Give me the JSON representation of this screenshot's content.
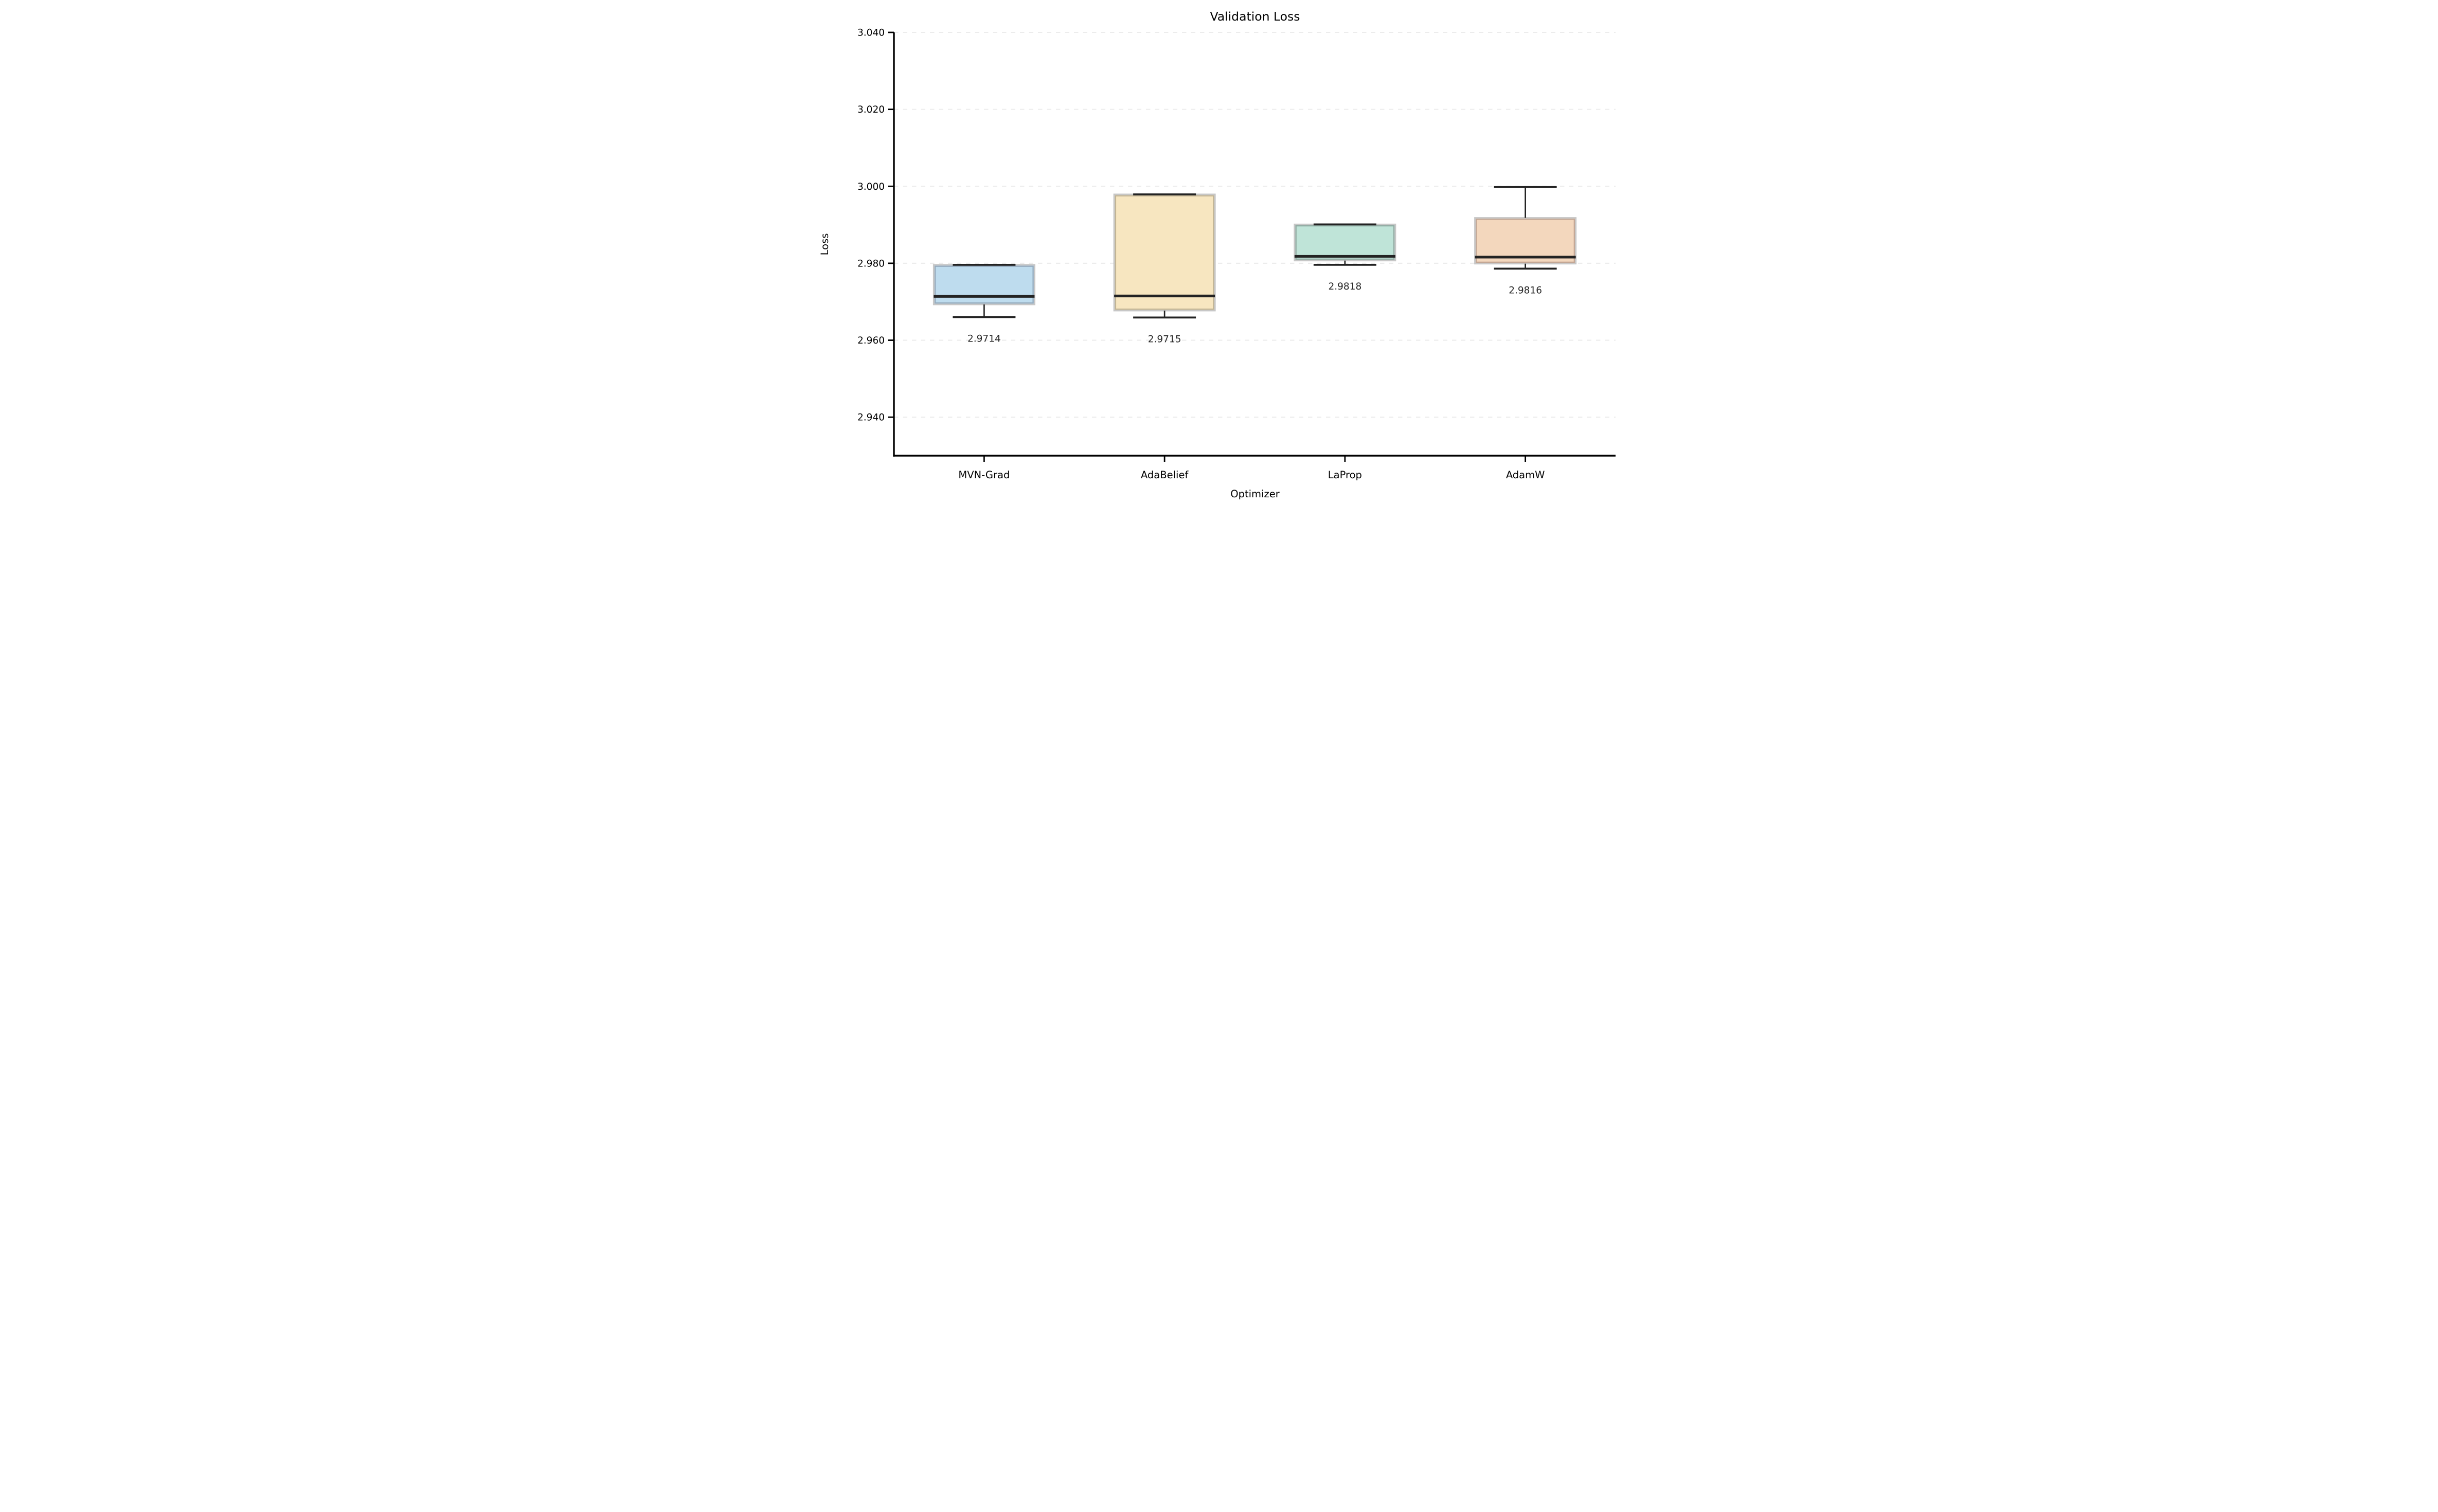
{
  "chart_data": {
    "type": "box",
    "title": "Validation Loss",
    "xlabel": "Optimizer",
    "ylabel": "Loss",
    "ylim": [
      2.93,
      3.04
    ],
    "yticks": [
      3.04,
      3.02,
      3.0,
      2.98,
      2.96,
      2.94
    ],
    "ytick_labels": [
      "3.040",
      "3.020",
      "3.000",
      "2.980",
      "2.960",
      "2.940"
    ],
    "grid": "horizontal-dashed",
    "legend_position": "none",
    "categories": [
      "MVN-Grad",
      "AdaBelief",
      "LaProp",
      "AdamW"
    ],
    "series": [
      {
        "name": "MVN-Grad",
        "whisker_low": 2.966,
        "q1": 2.9693,
        "median": 2.9714,
        "q3": 2.9796,
        "whisker_high": 2.9796,
        "annotation": "2.9714",
        "fill_color": "#bedcee",
        "edge_color": "#96abbe"
      },
      {
        "name": "AdaBelief",
        "whisker_low": 2.9659,
        "q1": 2.9677,
        "median": 2.9715,
        "q3": 2.9979,
        "whisker_high": 2.9979,
        "annotation": "2.9715",
        "fill_color": "#f7e6c0",
        "edge_color": "#c1b494"
      },
      {
        "name": "LaProp",
        "whisker_low": 2.9796,
        "q1": 2.9807,
        "median": 2.9818,
        "q3": 2.9901,
        "whisker_high": 2.9901,
        "annotation": "2.9818",
        "fill_color": "#bfe4d8",
        "edge_color": "#93aca4"
      },
      {
        "name": "AdamW",
        "whisker_low": 2.9786,
        "q1": 2.9799,
        "median": 2.9816,
        "q3": 2.9918,
        "whisker_high": 2.9998,
        "annotation": "2.9816",
        "fill_color": "#f3d7bd",
        "edge_color": "#c3a795"
      }
    ],
    "colors": {
      "background": "#ffffff",
      "grid": "#ececec",
      "spine": "#000000",
      "box_outer_edge": "#c7c7c7",
      "median_line": "#232323",
      "whisker": "#232323",
      "annotation_text": "#262626"
    }
  }
}
